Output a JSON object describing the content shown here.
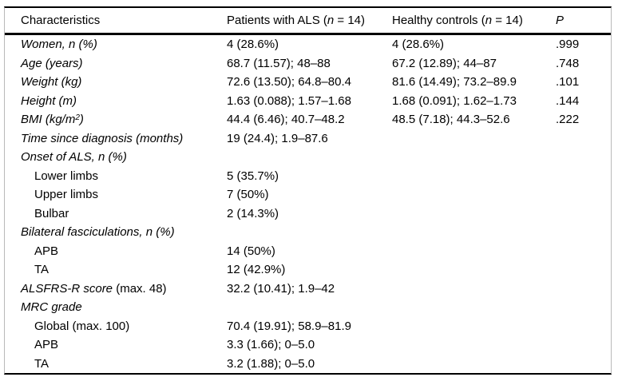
{
  "table": {
    "header": {
      "col1": "Characteristics",
      "col2": {
        "pre": "Patients with ALS (",
        "n": "n",
        "post": " = 14)"
      },
      "col3": {
        "pre": "Healthy controls (",
        "n": "n",
        "post": " = 14)"
      },
      "col4": "P"
    },
    "rows": [
      {
        "label": [
          {
            "t": "Women, n (%)",
            "i": true
          }
        ],
        "indent": false,
        "als": "4 (28.6%)",
        "hc": "4 (28.6%)",
        "p": ".999"
      },
      {
        "label": [
          {
            "t": "Age (years)",
            "i": true
          }
        ],
        "indent": false,
        "als": "68.7 (11.57); 48–88",
        "hc": "67.2 (12.89); 44–87",
        "p": ".748"
      },
      {
        "label": [
          {
            "t": "Weight (kg)",
            "i": true
          }
        ],
        "indent": false,
        "als": "72.6 (13.50); 64.8–80.4",
        "hc": "81.6 (14.49); 73.2–89.9",
        "p": ".101"
      },
      {
        "label": [
          {
            "t": "Height (m)",
            "i": true
          }
        ],
        "indent": false,
        "als": "1.63 (0.088); 1.57–1.68",
        "hc": "1.68 (0.091); 1.62–1.73",
        "p": ".144"
      },
      {
        "label": [
          {
            "t": "BMI (kg/m",
            "i": true
          },
          {
            "t": "2",
            "i": true,
            "sup": true
          },
          {
            "t": ")",
            "i": true
          }
        ],
        "indent": false,
        "als": "44.4 (6.46); 40.7–48.2",
        "hc": "48.5 (7.18); 44.3–52.6",
        "p": ".222"
      },
      {
        "label": [
          {
            "t": "Time since diagnosis (months)",
            "i": true
          }
        ],
        "indent": false,
        "als": "19 (24.4); 1.9–87.6",
        "hc": "",
        "p": ""
      },
      {
        "label": [
          {
            "t": "Onset of ALS, n (%)",
            "i": true
          }
        ],
        "indent": false,
        "als": "",
        "hc": "",
        "p": ""
      },
      {
        "label": [
          {
            "t": "Lower limbs",
            "i": false
          }
        ],
        "indent": true,
        "als": "5 (35.7%)",
        "hc": "",
        "p": ""
      },
      {
        "label": [
          {
            "t": "Upper limbs",
            "i": false
          }
        ],
        "indent": true,
        "als": "7 (50%)",
        "hc": "",
        "p": ""
      },
      {
        "label": [
          {
            "t": "Bulbar",
            "i": false
          }
        ],
        "indent": true,
        "als": "2 (14.3%)",
        "hc": "",
        "p": ""
      },
      {
        "label": [
          {
            "t": "Bilateral fasciculations, n (%)",
            "i": true
          }
        ],
        "indent": false,
        "als": "",
        "hc": "",
        "p": ""
      },
      {
        "label": [
          {
            "t": "APB",
            "i": false
          }
        ],
        "indent": true,
        "als": "14 (50%)",
        "hc": "",
        "p": ""
      },
      {
        "label": [
          {
            "t": "TA",
            "i": false
          }
        ],
        "indent": true,
        "als": "12 (42.9%)",
        "hc": "",
        "p": ""
      },
      {
        "label": [
          {
            "t": "ALSFRS-R score",
            "i": true
          },
          {
            "t": " (max. 48)",
            "i": false
          }
        ],
        "indent": false,
        "als": "32.2 (10.41); 1.9–42",
        "hc": "",
        "p": ""
      },
      {
        "label": [
          {
            "t": "MRC grade",
            "i": true
          }
        ],
        "indent": false,
        "als": "",
        "hc": "",
        "p": ""
      },
      {
        "label": [
          {
            "t": "Global (max. 100)",
            "i": false
          }
        ],
        "indent": true,
        "als": "70.4 (19.91); 58.9–81.9",
        "hc": "",
        "p": ""
      },
      {
        "label": [
          {
            "t": "APB",
            "i": false
          }
        ],
        "indent": true,
        "als": "3.3 (1.66); 0–5.0",
        "hc": "",
        "p": ""
      },
      {
        "label": [
          {
            "t": "TA",
            "i": false
          }
        ],
        "indent": true,
        "als": "3.2 (1.88); 0–5.0",
        "hc": "",
        "p": ""
      }
    ]
  }
}
